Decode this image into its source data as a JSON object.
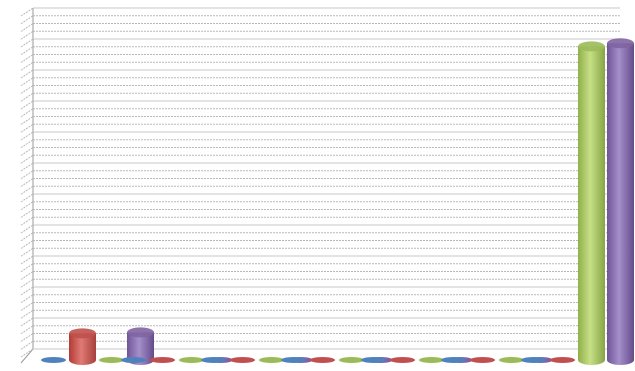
{
  "chart_data": {
    "type": "bar",
    "style": "3d-cylinder",
    "categories": [
      "",
      "",
      "",
      "",
      "",
      "",
      ""
    ],
    "series": [
      {
        "color": "#4f81bd",
        "values": [
          0,
          0,
          0,
          0,
          0,
          0,
          0
        ]
      },
      {
        "color": "#c0504d",
        "values": [
          8.5,
          0,
          0,
          0,
          0,
          0,
          0
        ]
      },
      {
        "color": "#9bbb59",
        "values": [
          0,
          0,
          0,
          0,
          0,
          0,
          100
        ]
      },
      {
        "color": "#8064a2",
        "values": [
          8.8,
          0,
          0,
          0,
          0,
          0,
          101
        ]
      }
    ],
    "ylim": [
      0,
      110
    ],
    "grid": true,
    "legend": "none"
  }
}
